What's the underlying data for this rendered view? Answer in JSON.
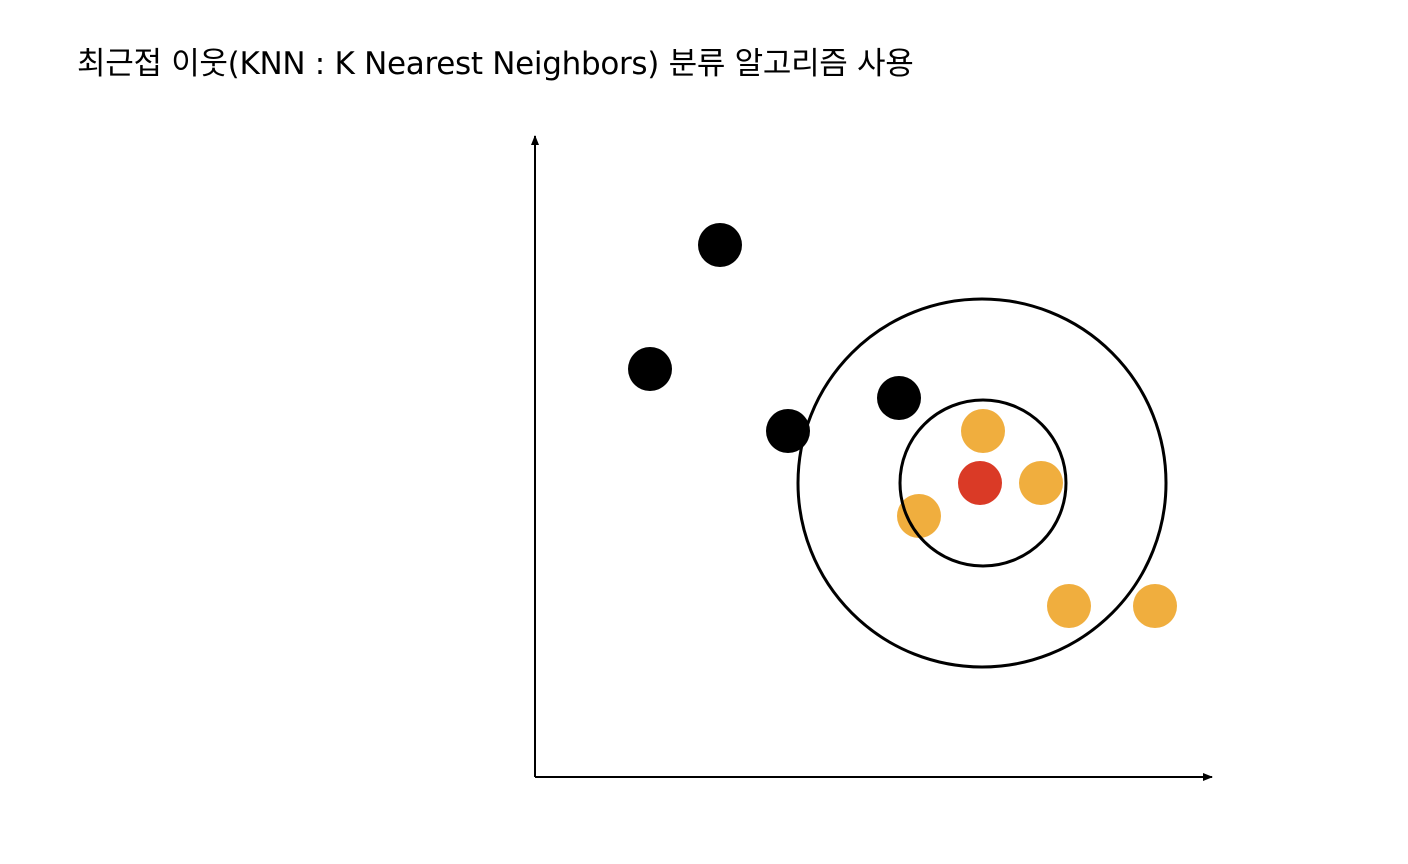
{
  "slide": {
    "title": "최근접 이웃(KNN : K Nearest Neighbors) 분류 알고리즘 사용"
  },
  "colors": {
    "axis": "#000000",
    "class_a": "#000000",
    "class_b": "#F0AE3E",
    "query": "#DA3A26",
    "boundary": "#000000"
  },
  "diagram": {
    "points": [
      {
        "class": "class_a"
      },
      {
        "class": "class_a"
      },
      {
        "class": "class_a"
      },
      {
        "class": "class_a"
      },
      {
        "class": "class_b"
      },
      {
        "class": "class_b"
      },
      {
        "class": "class_b"
      },
      {
        "class": "class_b"
      },
      {
        "class": "class_b"
      }
    ],
    "query": {
      "class": "query"
    }
  }
}
